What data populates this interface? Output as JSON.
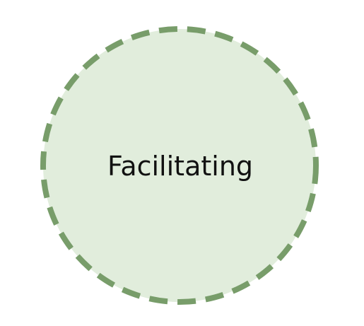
{
  "diagram": {
    "node": {
      "label": "Facilitating",
      "fill_color": "#e1eddc",
      "stroke_color": "#789d6a",
      "border_style": "dashed"
    }
  }
}
